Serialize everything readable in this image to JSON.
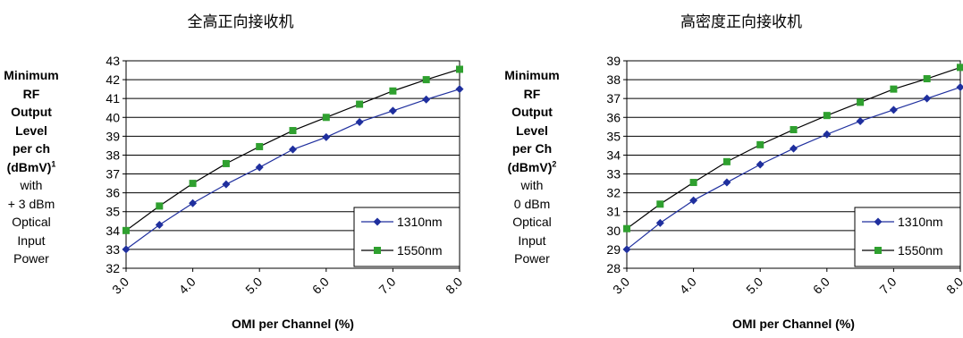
{
  "chart_data": [
    {
      "type": "line",
      "title": "全高正向接收机",
      "ylabel_lines": [
        {
          "text": "Minimum",
          "bold": true
        },
        {
          "text": "RF Output",
          "bold": true
        },
        {
          "text": "Level",
          "bold": true
        },
        {
          "text": "per ch",
          "bold": true
        },
        {
          "text": "(dBmV)",
          "bold": true,
          "sup": "1"
        },
        {
          "text": "with",
          "bold": false
        },
        {
          "text": "+ 3 dBm",
          "bold": false
        },
        {
          "text": "Optical",
          "bold": false
        },
        {
          "text": "Input",
          "bold": false
        },
        {
          "text": "Power",
          "bold": false
        }
      ],
      "xlabel": "OMI per Channel (%)",
      "x": [
        3.0,
        3.5,
        4.0,
        4.5,
        5.0,
        5.5,
        6.0,
        6.5,
        7.0,
        7.5,
        8.0
      ],
      "xticks": [
        "3.0",
        "4.0",
        "5.0",
        "6.0",
        "7.0",
        "8.0"
      ],
      "ylim": [
        32,
        43
      ],
      "yticks": [
        "32",
        "33",
        "34",
        "35",
        "36",
        "37",
        "38",
        "39",
        "40",
        "41",
        "42",
        "43"
      ],
      "grid": "horizontal",
      "legend_position": "bottom-right",
      "series": [
        {
          "name": "1310nm",
          "marker": "diamond",
          "color": "#1f2f9e",
          "values": [
            33.0,
            34.3,
            35.45,
            36.45,
            37.35,
            38.3,
            38.95,
            39.75,
            40.35,
            40.95,
            41.5
          ]
        },
        {
          "name": "1550nm",
          "marker": "square",
          "color": "#2fa02f",
          "values": [
            34.0,
            35.3,
            36.5,
            37.55,
            38.45,
            39.3,
            40.0,
            40.7,
            41.4,
            42.0,
            42.55
          ]
        }
      ]
    },
    {
      "type": "line",
      "title": "高密度正向接收机",
      "ylabel_lines": [
        {
          "text": "Minimum",
          "bold": true
        },
        {
          "text": "RF Output",
          "bold": true
        },
        {
          "text": "Level",
          "bold": true
        },
        {
          "text": "per Ch",
          "bold": true
        },
        {
          "text": "(dBmV)",
          "bold": true,
          "sup": "2"
        },
        {
          "text": "with",
          "bold": false
        },
        {
          "text": "0 dBm",
          "bold": false
        },
        {
          "text": "Optical",
          "bold": false
        },
        {
          "text": "Input",
          "bold": false
        },
        {
          "text": "Power",
          "bold": false
        }
      ],
      "xlabel": "OMI per Channel (%)",
      "x": [
        3.0,
        3.5,
        4.0,
        4.5,
        5.0,
        5.5,
        6.0,
        6.5,
        7.0,
        7.5,
        8.0
      ],
      "xticks": [
        "3.0",
        "4.0",
        "5.0",
        "6.0",
        "7.0",
        "8.0"
      ],
      "ylim": [
        28,
        39
      ],
      "yticks": [
        "28",
        "29",
        "30",
        "31",
        "32",
        "33",
        "34",
        "35",
        "36",
        "37",
        "38",
        "39"
      ],
      "grid": "horizontal",
      "legend_position": "bottom-right",
      "series": [
        {
          "name": "1310nm",
          "marker": "diamond",
          "color": "#1f2f9e",
          "values": [
            29.0,
            30.4,
            31.6,
            32.55,
            33.5,
            34.35,
            35.1,
            35.8,
            36.4,
            37.0,
            37.6
          ]
        },
        {
          "name": "1550nm",
          "marker": "square",
          "color": "#2fa02f",
          "values": [
            30.1,
            31.4,
            32.55,
            33.65,
            34.55,
            35.35,
            36.1,
            36.8,
            37.5,
            38.05,
            38.65
          ]
        }
      ]
    }
  ]
}
